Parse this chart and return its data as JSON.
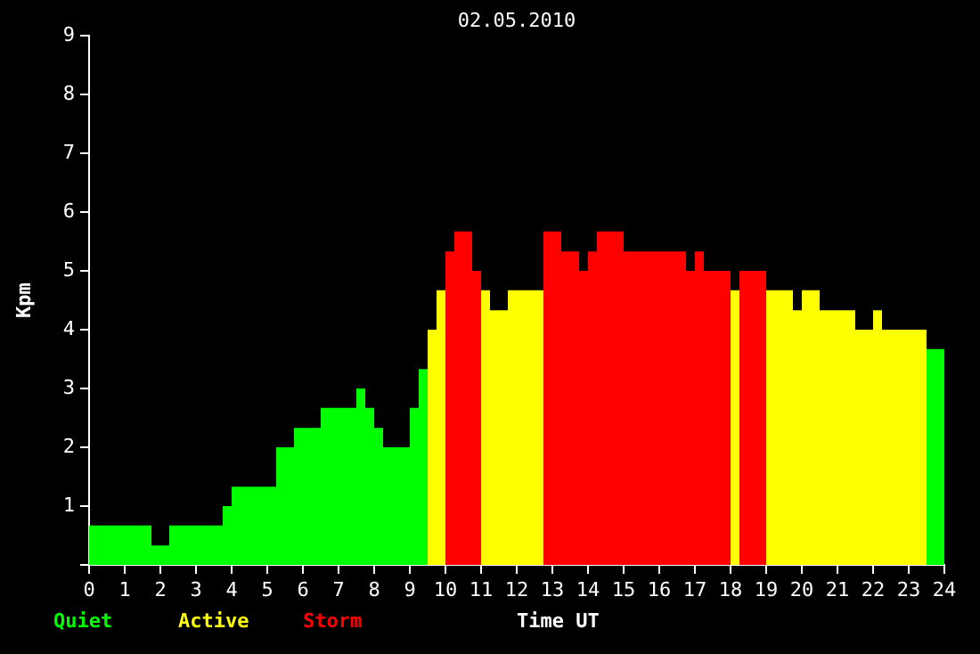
{
  "chart_data": {
    "type": "histogram",
    "title": "02.05.2010",
    "xlabel": "Time UT",
    "ylabel": "Kpm",
    "bins": [
      0,
      1.75,
      2.25,
      3.75,
      4,
      5.25,
      5.75,
      6.5,
      7.5,
      7.75,
      8,
      8.25,
      9,
      9.25,
      9.5,
      9.75,
      10,
      10.25,
      10.75,
      11,
      11.25,
      11.75,
      12.75,
      13.25,
      13.75,
      14,
      14.25,
      15,
      16.75,
      17,
      17.25,
      18,
      18.25,
      19,
      19.75,
      20,
      20.5,
      21.5,
      22,
      22.25,
      23.5,
      24
    ],
    "series": [
      {
        "name": "Quiet",
        "color": "#00ff00",
        "values": [
          0.67,
          0.33,
          0.67,
          1.0,
          1.33,
          2.0,
          2.33,
          2.67,
          3.0,
          2.67,
          2.33,
          2.0,
          2.67,
          3.33,
          null,
          null,
          null,
          null,
          null,
          null,
          null,
          null,
          null,
          null,
          null,
          null,
          null,
          null,
          null,
          null,
          null,
          null,
          null,
          null,
          null,
          null,
          null,
          null,
          null,
          null,
          3.67
        ]
      },
      {
        "name": "Active",
        "color": "#ffff00",
        "values": [
          null,
          null,
          null,
          null,
          null,
          null,
          null,
          null,
          null,
          null,
          null,
          null,
          null,
          null,
          4.0,
          4.67,
          null,
          null,
          null,
          4.67,
          4.33,
          4.67,
          null,
          null,
          null,
          null,
          null,
          null,
          null,
          null,
          null,
          4.67,
          null,
          4.67,
          4.33,
          4.67,
          4.33,
          4.0,
          4.33,
          4.0,
          null
        ]
      },
      {
        "name": "Storm",
        "color": "#ff0000",
        "values": [
          null,
          null,
          null,
          null,
          null,
          null,
          null,
          null,
          null,
          null,
          null,
          null,
          null,
          null,
          null,
          null,
          5.33,
          5.67,
          5.0,
          null,
          null,
          null,
          5.67,
          5.33,
          5.0,
          5.33,
          5.67,
          5.33,
          5.0,
          5.33,
          5.0,
          null,
          5.0,
          null,
          null,
          null,
          null,
          null,
          null,
          null,
          null
        ]
      }
    ],
    "xlim": [
      0,
      24
    ],
    "xticks": [
      0,
      1,
      2,
      3,
      4,
      5,
      6,
      7,
      8,
      9,
      10,
      11,
      12,
      13,
      14,
      15,
      16,
      17,
      18,
      19,
      20,
      21,
      22,
      23,
      24
    ],
    "ylim": [
      0,
      9
    ],
    "yticks": [
      {
        "value": 0,
        "label": null
      },
      1,
      2,
      3,
      4,
      5,
      6,
      7,
      8,
      9
    ],
    "legend": "bottom left"
  }
}
